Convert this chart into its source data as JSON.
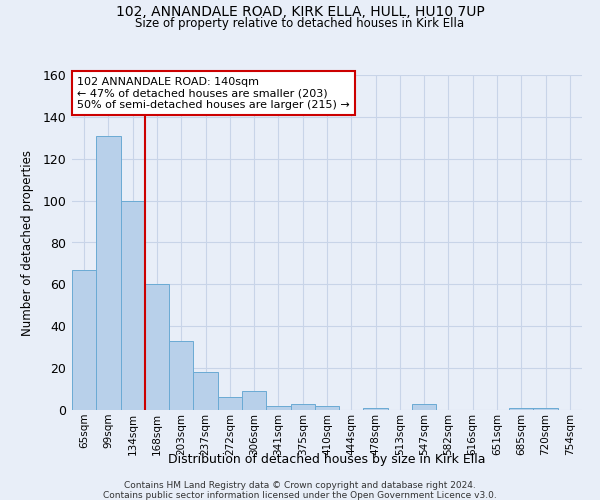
{
  "title_line1": "102, ANNANDALE ROAD, KIRK ELLA, HULL, HU10 7UP",
  "title_line2": "Size of property relative to detached houses in Kirk Ella",
  "xlabel": "Distribution of detached houses by size in Kirk Ella",
  "ylabel": "Number of detached properties",
  "categories": [
    "65sqm",
    "99sqm",
    "134sqm",
    "168sqm",
    "203sqm",
    "237sqm",
    "272sqm",
    "306sqm",
    "341sqm",
    "375sqm",
    "410sqm",
    "444sqm",
    "478sqm",
    "513sqm",
    "547sqm",
    "582sqm",
    "616sqm",
    "651sqm",
    "685sqm",
    "720sqm",
    "754sqm"
  ],
  "values": [
    67,
    131,
    100,
    60,
    33,
    18,
    6,
    9,
    2,
    3,
    2,
    0,
    1,
    0,
    3,
    0,
    0,
    0,
    1,
    1,
    0
  ],
  "bar_color": "#b8d0ea",
  "bar_edge_color": "#6aaad4",
  "grid_color": "#c8d4e8",
  "background_color": "#e8eef8",
  "vline_x_index": 2,
  "vline_color": "#cc0000",
  "annotation_text": "102 ANNANDALE ROAD: 140sqm\n← 47% of detached houses are smaller (203)\n50% of semi-detached houses are larger (215) →",
  "annotation_box_color": "white",
  "annotation_box_edge": "#cc0000",
  "ylim": [
    0,
    160
  ],
  "yticks": [
    0,
    20,
    40,
    60,
    80,
    100,
    120,
    140,
    160
  ],
  "footer_line1": "Contains HM Land Registry data © Crown copyright and database right 2024.",
  "footer_line2": "Contains public sector information licensed under the Open Government Licence v3.0."
}
